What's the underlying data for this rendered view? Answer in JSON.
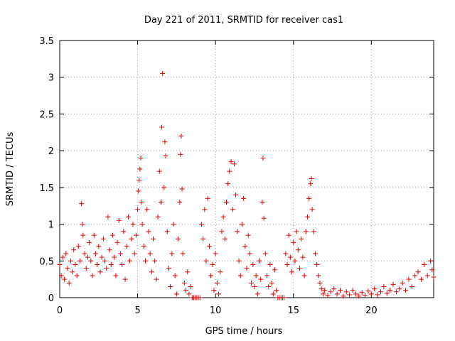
{
  "chart_data": {
    "type": "scatter",
    "title": "Day 221 of 2011, SRMTID for receiver cas1",
    "xlabel": "GPS time / hours",
    "ylabel": "SRMTID / TECUs",
    "xlim": [
      0,
      24
    ],
    "ylim": [
      0,
      3.5
    ],
    "xticks": [
      0,
      5,
      10,
      15,
      20
    ],
    "yticks": [
      0,
      0.5,
      1,
      1.5,
      2,
      2.5,
      3,
      3.5
    ],
    "xtick_labels": [
      "0",
      "5",
      "10",
      "15",
      "20"
    ],
    "ytick_labels": [
      "0",
      "0.5",
      "1",
      "1.5",
      "2",
      "2.5",
      "3",
      "3.5"
    ],
    "grid": true,
    "marker": "+",
    "series": [
      {
        "name": "cas1",
        "color": "#e00000",
        "points": [
          [
            0.0,
            0.45
          ],
          [
            0.1,
            0.3
          ],
          [
            0.2,
            0.55
          ],
          [
            0.3,
            0.25
          ],
          [
            0.4,
            0.6
          ],
          [
            0.5,
            0.4
          ],
          [
            0.6,
            0.2
          ],
          [
            0.7,
            0.5
          ],
          [
            0.8,
            0.35
          ],
          [
            0.9,
            0.65
          ],
          [
            1.0,
            0.45
          ],
          [
            1.1,
            0.3
          ],
          [
            1.2,
            0.7
          ],
          [
            1.3,
            0.5
          ],
          [
            1.4,
            1.28
          ],
          [
            1.45,
            1.0
          ],
          [
            1.5,
            0.85
          ],
          [
            1.6,
            0.6
          ],
          [
            1.7,
            0.4
          ],
          [
            1.8,
            0.55
          ],
          [
            1.9,
            0.75
          ],
          [
            2.0,
            0.5
          ],
          [
            2.1,
            0.3
          ],
          [
            2.2,
            0.85
          ],
          [
            2.3,
            0.6
          ],
          [
            2.4,
            0.45
          ],
          [
            2.5,
            0.7
          ],
          [
            2.6,
            0.35
          ],
          [
            2.7,
            0.55
          ],
          [
            2.8,
            0.8
          ],
          [
            2.9,
            0.5
          ],
          [
            3.0,
            0.4
          ],
          [
            3.1,
            1.1
          ],
          [
            3.2,
            0.65
          ],
          [
            3.3,
            0.45
          ],
          [
            3.4,
            0.85
          ],
          [
            3.5,
            0.55
          ],
          [
            3.6,
            0.3
          ],
          [
            3.7,
            0.75
          ],
          [
            3.8,
            1.05
          ],
          [
            3.9,
            0.6
          ],
          [
            4.0,
            0.45
          ],
          [
            4.1,
            0.9
          ],
          [
            4.2,
            0.25
          ],
          [
            4.3,
            0.7
          ],
          [
            4.4,
            1.1
          ],
          [
            4.5,
            0.5
          ],
          [
            4.6,
            0.8
          ],
          [
            4.7,
            1.0
          ],
          [
            4.8,
            0.6
          ],
          [
            4.9,
            0.85
          ],
          [
            5.0,
            1.2
          ],
          [
            5.05,
            1.45
          ],
          [
            5.1,
            1.6
          ],
          [
            5.15,
            1.75
          ],
          [
            5.2,
            1.9
          ],
          [
            5.25,
            1.3
          ],
          [
            5.3,
            1.0
          ],
          [
            5.4,
            0.7
          ],
          [
            5.5,
            0.5
          ],
          [
            5.6,
            1.2
          ],
          [
            5.7,
            0.9
          ],
          [
            5.8,
            0.6
          ],
          [
            5.9,
            0.35
          ],
          [
            6.0,
            0.8
          ],
          [
            6.1,
            0.5
          ],
          [
            6.2,
            0.25
          ],
          [
            6.3,
            1.1
          ],
          [
            6.4,
            1.72
          ],
          [
            6.5,
            1.3
          ],
          [
            6.55,
            2.32
          ],
          [
            6.6,
            3.05
          ],
          [
            6.7,
            1.5
          ],
          [
            6.75,
            2.12
          ],
          [
            6.8,
            1.93
          ],
          [
            6.9,
            0.9
          ],
          [
            7.0,
            0.4
          ],
          [
            7.1,
            0.15
          ],
          [
            7.2,
            0.6
          ],
          [
            7.3,
            1.0
          ],
          [
            7.4,
            0.3
          ],
          [
            7.5,
            0.05
          ],
          [
            7.6,
            0.8
          ],
          [
            7.7,
            1.3
          ],
          [
            7.75,
            1.95
          ],
          [
            7.8,
            2.2
          ],
          [
            7.85,
            1.48
          ],
          [
            7.9,
            0.6
          ],
          [
            8.0,
            0.2
          ],
          [
            8.1,
            0.1
          ],
          [
            8.2,
            0.35
          ],
          [
            8.3,
            0.05
          ],
          [
            8.4,
            0.15
          ],
          [
            8.5,
            0.0
          ],
          [
            8.6,
            0.0
          ],
          [
            8.7,
            0.0
          ],
          [
            8.8,
            0.0
          ],
          [
            8.9,
            0.0
          ],
          [
            9.0,
            0.0
          ],
          [
            9.1,
            1.0
          ],
          [
            9.2,
            0.8
          ],
          [
            9.3,
            1.2
          ],
          [
            9.4,
            0.5
          ],
          [
            9.5,
            1.35
          ],
          [
            9.6,
            0.7
          ],
          [
            9.7,
            0.3
          ],
          [
            9.8,
            0.45
          ],
          [
            9.9,
            0.1
          ],
          [
            10.0,
            0.6
          ],
          [
            10.1,
            0.2
          ],
          [
            10.2,
            0.05
          ],
          [
            10.3,
            0.35
          ],
          [
            10.4,
            0.9
          ],
          [
            10.5,
            1.1
          ],
          [
            10.6,
            0.8
          ],
          [
            10.7,
            1.3
          ],
          [
            10.8,
            1.55
          ],
          [
            10.9,
            1.72
          ],
          [
            11.0,
            1.85
          ],
          [
            11.1,
            1.2
          ],
          [
            11.2,
            1.82
          ],
          [
            11.3,
            1.4
          ],
          [
            11.4,
            0.9
          ],
          [
            11.5,
            0.5
          ],
          [
            11.6,
            0.3
          ],
          [
            11.7,
            1.0
          ],
          [
            11.8,
            1.35
          ],
          [
            11.9,
            0.7
          ],
          [
            12.0,
            0.4
          ],
          [
            12.1,
            0.85
          ],
          [
            12.2,
            0.6
          ],
          [
            12.3,
            0.2
          ],
          [
            12.4,
            0.45
          ],
          [
            12.5,
            0.15
          ],
          [
            12.6,
            0.3
          ],
          [
            12.7,
            0.05
          ],
          [
            12.8,
            0.5
          ],
          [
            12.9,
            0.25
          ],
          [
            13.0,
            1.3
          ],
          [
            13.05,
            1.9
          ],
          [
            13.1,
            1.08
          ],
          [
            13.2,
            0.6
          ],
          [
            13.3,
            0.3
          ],
          [
            13.4,
            0.15
          ],
          [
            13.5,
            0.45
          ],
          [
            13.6,
            0.2
          ],
          [
            13.7,
            0.05
          ],
          [
            13.8,
            0.38
          ],
          [
            13.9,
            0.1
          ],
          [
            14.0,
            0.0
          ],
          [
            14.1,
            0.0
          ],
          [
            14.2,
            0.0
          ],
          [
            14.3,
            0.0
          ],
          [
            14.4,
            0.0
          ],
          [
            14.5,
            0.6
          ],
          [
            14.6,
            0.45
          ],
          [
            14.7,
            0.85
          ],
          [
            14.8,
            0.55
          ],
          [
            14.9,
            0.35
          ],
          [
            15.0,
            0.75
          ],
          [
            15.1,
            0.5
          ],
          [
            15.2,
            0.9
          ],
          [
            15.3,
            0.65
          ],
          [
            15.4,
            0.4
          ],
          [
            15.5,
            0.8
          ],
          [
            15.6,
            0.55
          ],
          [
            15.7,
            0.3
          ],
          [
            15.8,
            0.9
          ],
          [
            15.9,
            1.1
          ],
          [
            16.0,
            1.35
          ],
          [
            16.1,
            1.55
          ],
          [
            16.15,
            1.62
          ],
          [
            16.2,
            1.2
          ],
          [
            16.3,
            0.9
          ],
          [
            16.4,
            0.6
          ],
          [
            16.5,
            0.45
          ],
          [
            16.6,
            0.3
          ],
          [
            16.7,
            0.2
          ],
          [
            16.8,
            0.12
          ],
          [
            16.9,
            0.05
          ],
          [
            17.0,
            0.1
          ],
          [
            17.2,
            0.03
          ],
          [
            17.4,
            0.08
          ],
          [
            17.6,
            0.12
          ],
          [
            17.8,
            0.05
          ],
          [
            18.0,
            0.1
          ],
          [
            18.2,
            0.02
          ],
          [
            18.4,
            0.08
          ],
          [
            18.6,
            0.04
          ],
          [
            18.8,
            0.1
          ],
          [
            19.0,
            0.05
          ],
          [
            19.2,
            0.02
          ],
          [
            19.4,
            0.07
          ],
          [
            19.6,
            0.03
          ],
          [
            19.8,
            0.09
          ],
          [
            20.0,
            0.05
          ],
          [
            20.2,
            0.12
          ],
          [
            20.4,
            0.04
          ],
          [
            20.6,
            0.08
          ],
          [
            20.8,
            0.15
          ],
          [
            21.0,
            0.06
          ],
          [
            21.2,
            0.1
          ],
          [
            21.4,
            0.18
          ],
          [
            21.6,
            0.08
          ],
          [
            21.8,
            0.12
          ],
          [
            22.0,
            0.2
          ],
          [
            22.2,
            0.1
          ],
          [
            22.4,
            0.25
          ],
          [
            22.6,
            0.15
          ],
          [
            22.8,
            0.3
          ],
          [
            23.0,
            0.35
          ],
          [
            23.2,
            0.25
          ],
          [
            23.4,
            0.45
          ],
          [
            23.6,
            0.3
          ],
          [
            23.8,
            0.5
          ],
          [
            23.9,
            0.38
          ],
          [
            24.0,
            0.28
          ]
        ]
      }
    ]
  }
}
